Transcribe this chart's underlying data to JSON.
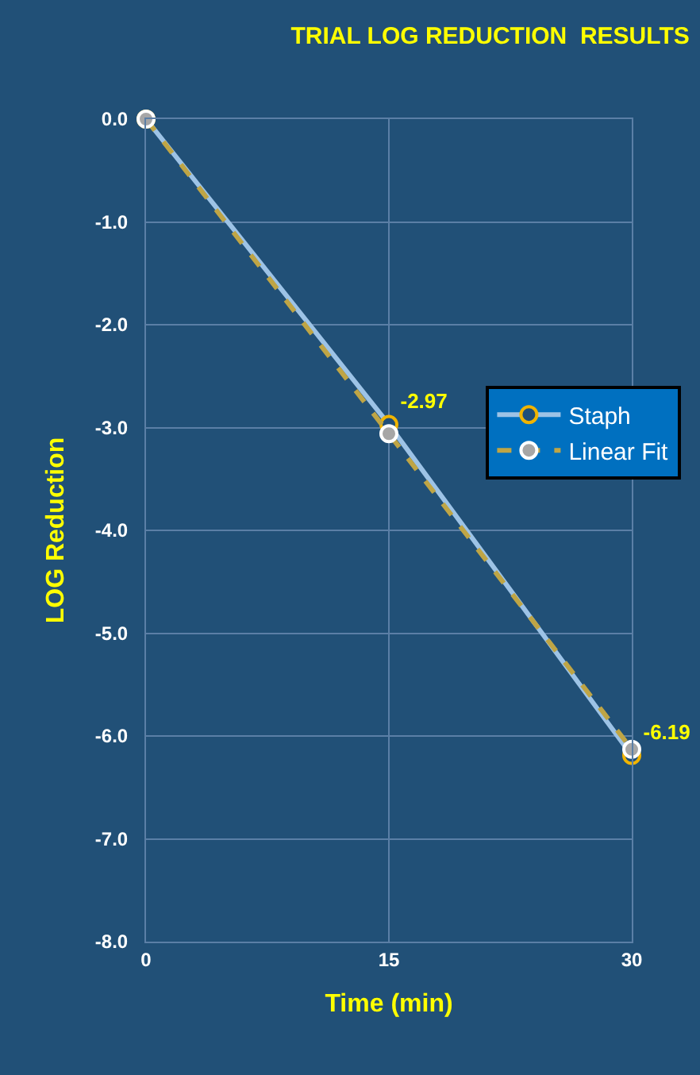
{
  "chart_data": {
    "type": "line",
    "title": "TRIAL LOG REDUCTION  RESULTS",
    "xlabel": "Time (min)",
    "ylabel": "LOG Reduction",
    "x": [
      0,
      15,
      30
    ],
    "series": [
      {
        "name": "Staph",
        "color": "#9dc3e6",
        "values": [
          0,
          -2.97,
          -6.19
        ],
        "value_labels": [
          null,
          "-2.97",
          "-6.19"
        ],
        "line_style": "solid"
      },
      {
        "name": "Linear Fit",
        "color": "#bfa545",
        "values": [
          0,
          -3.06,
          -6.13
        ],
        "line_style": "dashed"
      }
    ],
    "xlim": [
      0,
      30
    ],
    "xticks": [
      0,
      15,
      30
    ],
    "ylim": [
      -8,
      0
    ],
    "yticks": [
      {
        "value": 0,
        "label": "0.0"
      },
      {
        "value": -1,
        "label": "-1.0"
      },
      {
        "value": -2,
        "label": "-2.0"
      },
      {
        "value": -3,
        "label": "-3.0"
      },
      {
        "value": -4,
        "label": "-4.0"
      },
      {
        "value": -5,
        "label": "-5.0"
      },
      {
        "value": -6,
        "label": "-6.0"
      },
      {
        "value": -7,
        "label": "-7.0"
      },
      {
        "value": -8,
        "label": "-8.0"
      }
    ],
    "grid": true,
    "legend": "right",
    "marker": "circle"
  }
}
